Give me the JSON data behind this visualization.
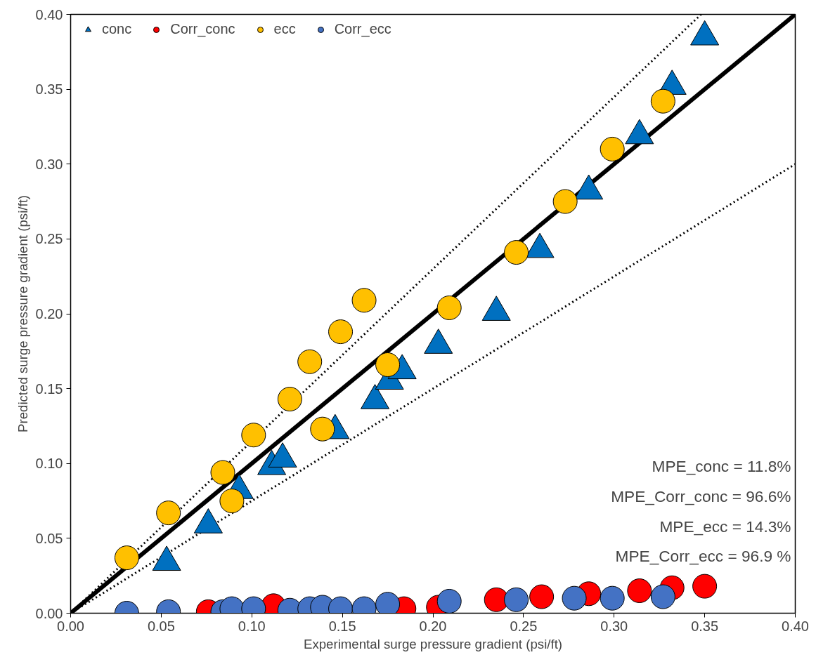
{
  "chart_data": {
    "type": "scatter",
    "xlabel": "Experimental surge pressure gradient (psi/ft)",
    "ylabel": "Predicted surge pressure gradient (psi/ft)",
    "xlim": [
      0,
      0.4
    ],
    "ylim": [
      0,
      0.4
    ],
    "xticks": [
      {
        "value": 0,
        "label": "0.00"
      },
      {
        "value": 0.05,
        "label": "0.05"
      },
      {
        "value": 0.1,
        "label": "0.10"
      },
      {
        "value": 0.15,
        "label": "0.15"
      },
      {
        "value": 0.2,
        "label": "0.20"
      },
      {
        "value": 0.25,
        "label": "0.25"
      },
      {
        "value": 0.3,
        "label": "0.30"
      },
      {
        "value": 0.35,
        "label": "0.35"
      },
      {
        "value": 0.4,
        "label": "0.40"
      }
    ],
    "yticks": [
      {
        "value": 0,
        "label": "0.00"
      },
      {
        "value": 0.05,
        "label": "0.05"
      },
      {
        "value": 0.1,
        "label": "0.10"
      },
      {
        "value": 0.15,
        "label": "0.15"
      },
      {
        "value": 0.2,
        "label": "0.20"
      },
      {
        "value": 0.25,
        "label": "0.25"
      },
      {
        "value": 0.3,
        "label": "0.30"
      },
      {
        "value": 0.35,
        "label": "0.35"
      },
      {
        "value": 0.4,
        "label": "0.40"
      }
    ],
    "grid": false,
    "legend": "top left",
    "annotations": [
      "MPE_conc = 11.8%",
      "MPE_Corr_conc = 96.6%",
      "MPE_ecc = 14.3%",
      "MPE_Corr_ecc = 96.9 %"
    ],
    "series": [
      {
        "type": "line",
        "color": "#000000",
        "line_style": "solid",
        "x": [
          0,
          0.4
        ],
        "values": [
          0,
          0.4
        ]
      },
      {
        "type": "line",
        "color": "#000000",
        "line_style": "dotted",
        "x": [
          0,
          0.348
        ],
        "values": [
          0,
          0.4
        ]
      },
      {
        "type": "line",
        "color": "#000000",
        "line_style": "dotted",
        "x": [
          0,
          0.4
        ],
        "values": [
          0,
          0.3
        ]
      },
      {
        "name": "conc",
        "color": "#0070c0",
        "marker": "triangle",
        "x": [
          0.053,
          0.076,
          0.093,
          0.111,
          0.117,
          0.146,
          0.168,
          0.176,
          0.183,
          0.203,
          0.235,
          0.259,
          0.286,
          0.314,
          0.332,
          0.35
        ],
        "values": [
          0.034,
          0.059,
          0.082,
          0.098,
          0.103,
          0.122,
          0.142,
          0.155,
          0.162,
          0.179,
          0.201,
          0.243,
          0.282,
          0.319,
          0.352,
          0.385
        ]
      },
      {
        "name": "Corr_conc",
        "color": "#ff0000",
        "marker": "circle",
        "x": [
          0.076,
          0.093,
          0.112,
          0.146,
          0.168,
          0.175,
          0.184,
          0.203,
          0.235,
          0.26,
          0.286,
          0.314,
          0.332,
          0.35
        ],
        "values": [
          0.001,
          null,
          0.005,
          null,
          null,
          null,
          0.003,
          0.004,
          0.009,
          0.011,
          0.013,
          0.015,
          0.017,
          0.018
        ]
      },
      {
        "name": "ecc",
        "color": "#ffc000",
        "marker": "circle",
        "x": [
          0.031,
          0.054,
          0.084,
          0.089,
          0.101,
          0.121,
          0.132,
          0.139,
          0.149,
          0.162,
          0.175,
          0.209,
          0.246,
          0.273,
          0.299,
          0.327
        ],
        "values": [
          0.037,
          0.067,
          0.094,
          0.075,
          0.119,
          0.143,
          0.168,
          0.123,
          0.188,
          0.209,
          0.166,
          0.204,
          0.241,
          0.275,
          0.31,
          0.342
        ]
      },
      {
        "name": "Corr_ecc",
        "color": "#4472c4",
        "marker": "circle",
        "x": [
          0.031,
          0.054,
          0.084,
          0.089,
          0.101,
          0.121,
          0.132,
          0.139,
          0.149,
          0.162,
          0.175,
          0.209,
          0.246,
          0.278,
          0.299,
          0.327
        ],
        "values": [
          0.0,
          0.001,
          0.001,
          0.003,
          0.003,
          0.002,
          0.003,
          0.004,
          0.003,
          0.003,
          0.006,
          0.008,
          0.009,
          0.01,
          0.01,
          0.011
        ]
      }
    ]
  }
}
